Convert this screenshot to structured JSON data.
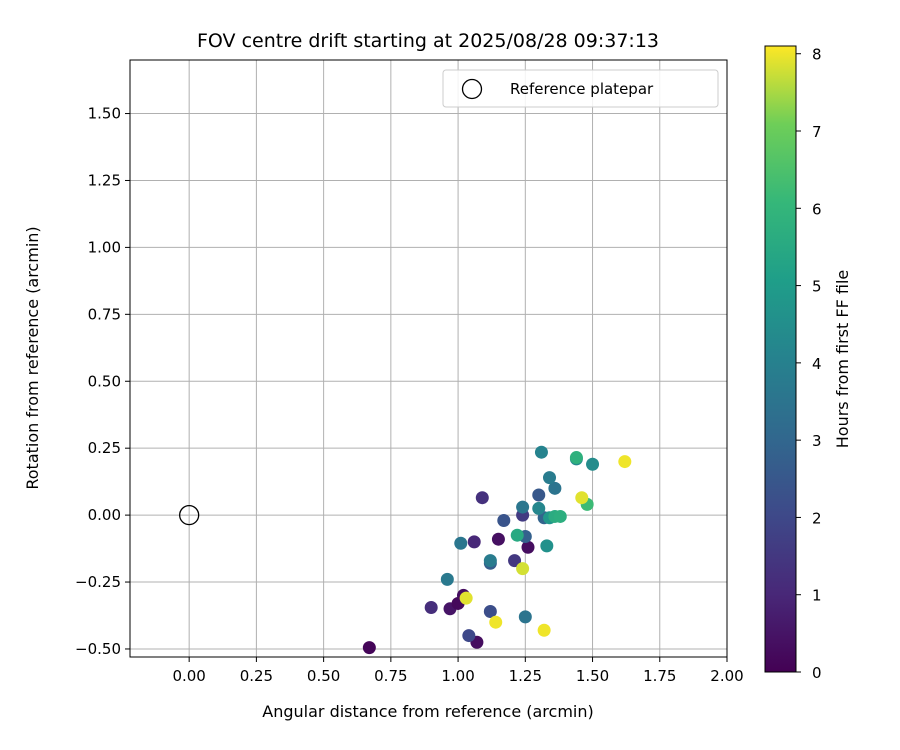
{
  "chart_data": {
    "type": "scatter",
    "title": "FOV centre drift starting at 2025/08/28 09:37:13",
    "xlabel": "Angular distance from reference (arcmin)",
    "ylabel": "Rotation from reference (arcmin)",
    "xlim": [
      -0.22,
      2.0
    ],
    "ylim": [
      -0.53,
      1.7
    ],
    "xticks": [
      0.0,
      0.25,
      0.5,
      0.75,
      1.0,
      1.25,
      1.5,
      1.75,
      2.0
    ],
    "xtick_labels": [
      "0.00",
      "0.25",
      "0.50",
      "0.75",
      "1.00",
      "1.25",
      "1.50",
      "1.75",
      "2.00"
    ],
    "yticks": [
      -0.5,
      -0.25,
      0.0,
      0.25,
      0.5,
      0.75,
      1.0,
      1.25,
      1.5
    ],
    "ytick_labels": [
      "−0.50",
      "−0.25",
      "0.00",
      "0.25",
      "0.50",
      "0.75",
      "1.00",
      "1.25",
      "1.50"
    ],
    "grid": true,
    "legend": {
      "position": "top-right",
      "label": "Reference platepar"
    },
    "reference_point": {
      "x": 0.0,
      "y": 0.0
    },
    "colorbar": {
      "label": "Hours from first FF file",
      "min": 0,
      "max": 8.1,
      "ticks": [
        0,
        1,
        2,
        3,
        4,
        5,
        6,
        7,
        8
      ],
      "colormap": "viridis"
    },
    "points": [
      {
        "x": 0.67,
        "y": -0.495,
        "c": 0.1
      },
      {
        "x": 1.07,
        "y": -0.475,
        "c": 0.3
      },
      {
        "x": 0.97,
        "y": -0.35,
        "c": 0.5
      },
      {
        "x": 1.0,
        "y": -0.33,
        "c": 0.2
      },
      {
        "x": 1.02,
        "y": -0.3,
        "c": 0.3
      },
      {
        "x": 1.15,
        "y": -0.09,
        "c": 0.4
      },
      {
        "x": 1.26,
        "y": -0.12,
        "c": 0.3
      },
      {
        "x": 0.9,
        "y": -0.345,
        "c": 1.2
      },
      {
        "x": 1.06,
        "y": -0.1,
        "c": 1.0
      },
      {
        "x": 1.09,
        "y": 0.065,
        "c": 1.3
      },
      {
        "x": 1.21,
        "y": -0.17,
        "c": 1.5
      },
      {
        "x": 1.24,
        "y": 0.0,
        "c": 1.6
      },
      {
        "x": 1.04,
        "y": -0.45,
        "c": 2.0
      },
      {
        "x": 1.12,
        "y": -0.36,
        "c": 2.2
      },
      {
        "x": 1.17,
        "y": -0.02,
        "c": 2.4
      },
      {
        "x": 1.12,
        "y": -0.18,
        "c": 2.7
      },
      {
        "x": 1.3,
        "y": 0.075,
        "c": 2.5
      },
      {
        "x": 1.25,
        "y": -0.08,
        "c": 2.8
      },
      {
        "x": 1.32,
        "y": -0.01,
        "c": 2.9
      },
      {
        "x": 1.25,
        "y": -0.38,
        "c": 3.5
      },
      {
        "x": 0.96,
        "y": -0.24,
        "c": 3.7
      },
      {
        "x": 1.01,
        "y": -0.105,
        "c": 3.6
      },
      {
        "x": 1.12,
        "y": -0.17,
        "c": 3.8
      },
      {
        "x": 1.24,
        "y": 0.03,
        "c": 3.6
      },
      {
        "x": 1.36,
        "y": 0.1,
        "c": 3.5
      },
      {
        "x": 1.34,
        "y": 0.14,
        "c": 3.8
      },
      {
        "x": 1.31,
        "y": 0.235,
        "c": 4.1
      },
      {
        "x": 1.3,
        "y": 0.025,
        "c": 4.2
      },
      {
        "x": 1.44,
        "y": 0.21,
        "c": 4.3
      },
      {
        "x": 1.5,
        "y": 0.19,
        "c": 4.4
      },
      {
        "x": 1.33,
        "y": -0.115,
        "c": 4.6
      },
      {
        "x": 1.34,
        "y": -0.01,
        "c": 4.8
      },
      {
        "x": 1.22,
        "y": -0.075,
        "c": 5.5
      },
      {
        "x": 1.36,
        "y": -0.005,
        "c": 5.6
      },
      {
        "x": 1.38,
        "y": -0.005,
        "c": 5.7
      },
      {
        "x": 1.44,
        "y": 0.215,
        "c": 5.8
      },
      {
        "x": 1.48,
        "y": 0.04,
        "c": 6.2
      },
      {
        "x": 1.24,
        "y": -0.2,
        "c": 7.8
      },
      {
        "x": 1.03,
        "y": -0.31,
        "c": 7.9
      },
      {
        "x": 1.14,
        "y": -0.4,
        "c": 8.0
      },
      {
        "x": 1.32,
        "y": -0.43,
        "c": 8.0
      },
      {
        "x": 1.46,
        "y": 0.065,
        "c": 7.9
      },
      {
        "x": 1.62,
        "y": 0.2,
        "c": 8.0
      }
    ]
  }
}
